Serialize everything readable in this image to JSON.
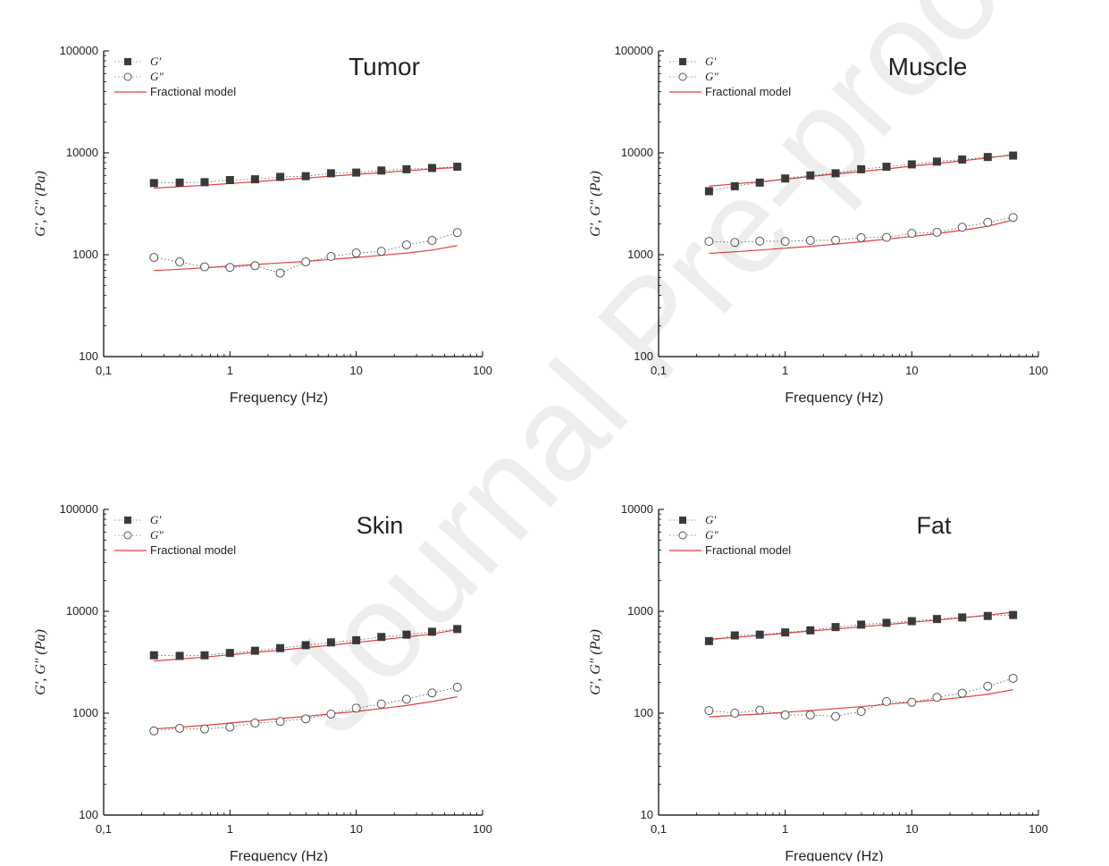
{
  "watermark": "Journal Pre-proof",
  "chart_data": [
    {
      "type": "scatter",
      "title": "Tumor",
      "xlabel": "Frequency (Hz)",
      "ylabel": "G′, G″ (Pa)",
      "xscale": "log",
      "yscale": "log",
      "xlim": [
        0.1,
        100
      ],
      "ylim": [
        100,
        100000
      ],
      "xticks": [
        "0,1",
        "1",
        "10",
        "100"
      ],
      "yticks": [
        "100",
        "1000",
        "10000",
        "100000"
      ],
      "legend": [
        "G′",
        "G″",
        "Fractional model"
      ],
      "legend_position": "top-left",
      "x": [
        0.25,
        0.4,
        0.63,
        1.0,
        1.58,
        2.5,
        3.98,
        6.31,
        10,
        15.8,
        25,
        39.8,
        63.1
      ],
      "series": [
        {
          "name": "G′",
          "marker": "filled-square",
          "values": [
            5050,
            5100,
            5150,
            5400,
            5500,
            5800,
            5900,
            6300,
            6400,
            6700,
            6900,
            7100,
            7300
          ]
        },
        {
          "name": "G″",
          "marker": "open-circle",
          "values": [
            940,
            850,
            760,
            750,
            780,
            660,
            850,
            960,
            1040,
            1080,
            1250,
            1380,
            1650
          ]
        },
        {
          "name": "Fractional model",
          "values": [
            4500,
            4650,
            4800,
            5000,
            5200,
            5450,
            5650,
            5900,
            6150,
            6400,
            6650,
            6950,
            7200
          ]
        },
        {
          "name": "Fractional model",
          "values": [
            700,
            720,
            745,
            770,
            800,
            830,
            860,
            900,
            940,
            985,
            1040,
            1110,
            1230
          ]
        }
      ]
    },
    {
      "type": "scatter",
      "title": "Muscle",
      "xlabel": "Frequency (Hz)",
      "ylabel": "G′, G″ (Pa)",
      "xscale": "log",
      "yscale": "log",
      "xlim": [
        0.1,
        100
      ],
      "ylim": [
        100,
        100000
      ],
      "xticks": [
        "0,1",
        "1",
        "10",
        "100"
      ],
      "yticks": [
        "100",
        "1000",
        "10000",
        "100000"
      ],
      "legend": [
        "G′",
        "G″",
        "Fractional model"
      ],
      "legend_position": "top-left",
      "x": [
        0.25,
        0.4,
        0.63,
        1.0,
        1.58,
        2.5,
        3.98,
        6.31,
        10,
        15.8,
        25,
        39.8,
        63.1
      ],
      "series": [
        {
          "name": "G′",
          "marker": "filled-square",
          "values": [
            4200,
            4700,
            5100,
            5600,
            6000,
            6300,
            6900,
            7300,
            7700,
            8200,
            8600,
            9100,
            9400
          ]
        },
        {
          "name": "G″",
          "marker": "open-circle",
          "values": [
            1350,
            1320,
            1360,
            1350,
            1380,
            1390,
            1470,
            1480,
            1620,
            1660,
            1860,
            2080,
            2320
          ]
        },
        {
          "name": "Fractional model",
          "values": [
            4700,
            4950,
            5200,
            5500,
            5850,
            6200,
            6550,
            6950,
            7400,
            7850,
            8350,
            8900,
            9600
          ]
        },
        {
          "name": "Fractional model",
          "values": [
            1030,
            1070,
            1110,
            1160,
            1210,
            1270,
            1340,
            1420,
            1510,
            1610,
            1740,
            1900,
            2200
          ]
        }
      ]
    },
    {
      "type": "scatter",
      "title": "Skin",
      "xlabel": "Frequency (Hz)",
      "ylabel": "G′, G″ (Pa)",
      "xscale": "log",
      "yscale": "log",
      "xlim": [
        0.1,
        100
      ],
      "ylim": [
        100,
        100000
      ],
      "xticks": [
        "0,1",
        "1",
        "10",
        "100"
      ],
      "yticks": [
        "100",
        "1000",
        "10000",
        "100000"
      ],
      "legend": [
        "G′",
        "G″",
        "Fractional model"
      ],
      "legend_position": "top-left",
      "x": [
        0.25,
        0.4,
        0.63,
        1.0,
        1.58,
        2.5,
        3.98,
        6.31,
        10,
        15.8,
        25,
        39.8,
        63.1
      ],
      "series": [
        {
          "name": "G′",
          "marker": "filled-square",
          "values": [
            3700,
            3650,
            3700,
            3900,
            4100,
            4350,
            4650,
            4950,
            5200,
            5600,
            5900,
            6300,
            6700
          ]
        },
        {
          "name": "G″",
          "marker": "open-circle",
          "values": [
            670,
            710,
            700,
            730,
            800,
            830,
            880,
            980,
            1120,
            1230,
            1370,
            1580,
            1800
          ]
        },
        {
          "name": "Fractional model",
          "values": [
            3250,
            3400,
            3550,
            3750,
            3950,
            4150,
            4400,
            4650,
            4950,
            5250,
            5600,
            6000,
            6600
          ]
        },
        {
          "name": "Fractional model",
          "values": [
            700,
            730,
            760,
            800,
            840,
            885,
            930,
            985,
            1040,
            1110,
            1190,
            1300,
            1450
          ]
        }
      ]
    },
    {
      "type": "scatter",
      "title": "Fat",
      "xlabel": "Frequency (Hz)",
      "ylabel": "G′, G″ (Pa)",
      "xscale": "log",
      "yscale": "log",
      "xlim": [
        0.1,
        100
      ],
      "ylim": [
        10,
        10000
      ],
      "xticks": [
        "0,1",
        "1",
        "10",
        "100"
      ],
      "yticks": [
        "10",
        "100",
        "1000",
        "10000"
      ],
      "legend": [
        "G′",
        "G″",
        "Fractional model"
      ],
      "legend_position": "top-left",
      "x": [
        0.25,
        0.4,
        0.63,
        1.0,
        1.58,
        2.5,
        3.98,
        6.31,
        10,
        15.8,
        25,
        39.8,
        63.1
      ],
      "series": [
        {
          "name": "G′",
          "marker": "filled-square",
          "values": [
            510,
            580,
            590,
            620,
            650,
            700,
            740,
            770,
            800,
            840,
            870,
            900,
            920
          ]
        },
        {
          "name": "G″",
          "marker": "open-circle",
          "values": [
            106,
            100,
            107,
            96,
            96,
            93,
            104,
            130,
            128,
            143,
            157,
            184,
            220
          ]
        },
        {
          "name": "Fractional model",
          "values": [
            530,
            555,
            580,
            610,
            640,
            670,
            705,
            740,
            780,
            820,
            865,
            915,
            980
          ]
        },
        {
          "name": "Fractional model",
          "values": [
            92,
            95,
            98,
            102,
            106,
            111,
            116,
            122,
            128,
            135,
            143,
            153,
            170
          ]
        }
      ]
    }
  ]
}
